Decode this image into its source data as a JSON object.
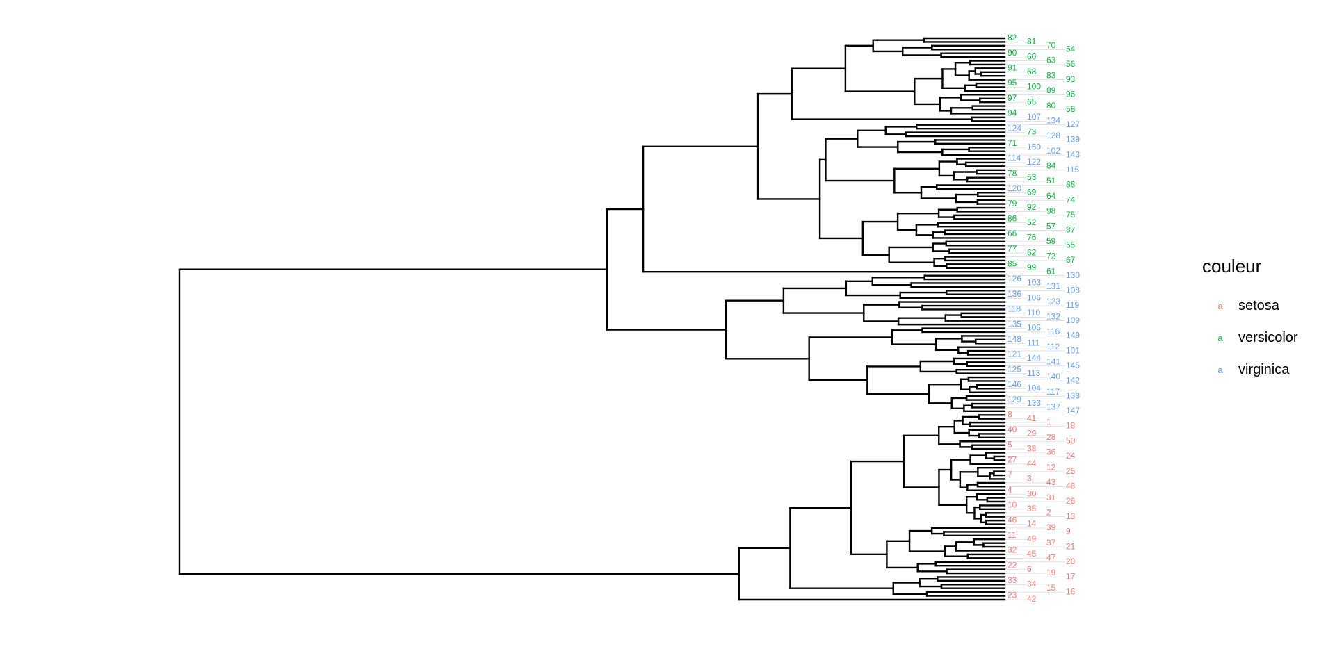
{
  "chart_data": {
    "type": "dendrogram",
    "title": "",
    "xlabel": "",
    "ylabel": "",
    "orientation": "horizontal",
    "root_height": 10,
    "species_colors": {
      "setosa": "#F8766D",
      "versicolor": "#00BA38",
      "virginica": "#619CFF"
    },
    "leaf_labels": [
      82,
      81,
      70,
      54,
      90,
      60,
      63,
      56,
      91,
      68,
      83,
      93,
      95,
      100,
      89,
      96,
      97,
      65,
      80,
      58,
      94,
      107,
      134,
      127,
      124,
      73,
      128,
      139,
      71,
      150,
      102,
      143,
      114,
      122,
      84,
      115,
      78,
      53,
      51,
      88,
      120,
      69,
      64,
      74,
      79,
      92,
      98,
      75,
      86,
      52,
      57,
      87,
      66,
      76,
      59,
      55,
      77,
      62,
      72,
      67,
      85,
      99,
      61,
      130,
      126,
      103,
      131,
      108,
      136,
      106,
      123,
      119,
      118,
      110,
      132,
      109,
      135,
      105,
      116,
      149,
      148,
      111,
      112,
      101,
      121,
      144,
      141,
      145,
      125,
      113,
      140,
      142,
      146,
      104,
      117,
      138,
      129,
      133,
      137,
      147,
      8,
      41,
      1,
      18,
      40,
      29,
      28,
      50,
      5,
      38,
      36,
      24,
      27,
      44,
      12,
      25,
      7,
      3,
      43,
      48,
      4,
      30,
      31,
      26,
      10,
      35,
      2,
      13,
      46,
      14,
      39,
      9,
      11,
      49,
      37,
      21,
      32,
      45,
      47,
      20,
      22,
      6,
      19,
      17,
      33,
      34,
      15,
      16,
      23,
      42
    ],
    "tree": {
      "h": 10,
      "children": [
        {
          "h": 4.82,
          "children": [
            {
              "h": 4.38,
              "children": [
                {
                  "h": 2.99,
                  "children": [
                    {
                      "h": 2.58,
                      "children": [
                        {
                          "rows": [
                            0,
                            20
                          ],
                          "h": 1.93
                        },
                        {
                          "rows": [
                            21,
                            22
                          ],
                          "h": 0.4
                        }
                      ]
                    },
                    {
                      "h": 2.24,
                      "children": [
                        {
                          "rows": [
                            23,
                            44
                          ],
                          "h": 2.17
                        },
                        {
                          "rows": [
                            45,
                            61
                          ],
                          "h": 1.72
                        }
                      ]
                    }
                  ]
                },
                {
                  "leaf": 62
                }
              ]
            },
            {
              "h": 3.38,
              "children": [
                {
                  "rows": [
                    63,
                    76
                  ],
                  "h": 2.68
                },
                {
                  "rows": [
                    77,
                    99
                  ],
                  "h": 2.37
                }
              ]
            }
          ]
        },
        {
          "h": 3.22,
          "children": [
            {
              "h": 2.6,
              "children": [
                {
                  "rows": [
                    100,
                    142
                  ],
                  "h": 1.86
                },
                {
                  "rows": [
                    143,
                    148
                  ],
                  "h": 1.35
                }
              ]
            },
            {
              "leaf": 149
            }
          ]
        }
      ]
    }
  },
  "legend": {
    "title": "couleur",
    "key_glyph": "a",
    "items": [
      {
        "label": "setosa",
        "color": "#F8766D"
      },
      {
        "label": "versicolor",
        "color": "#00BA38"
      },
      {
        "label": "virginica",
        "color": "#619CFF"
      }
    ]
  }
}
